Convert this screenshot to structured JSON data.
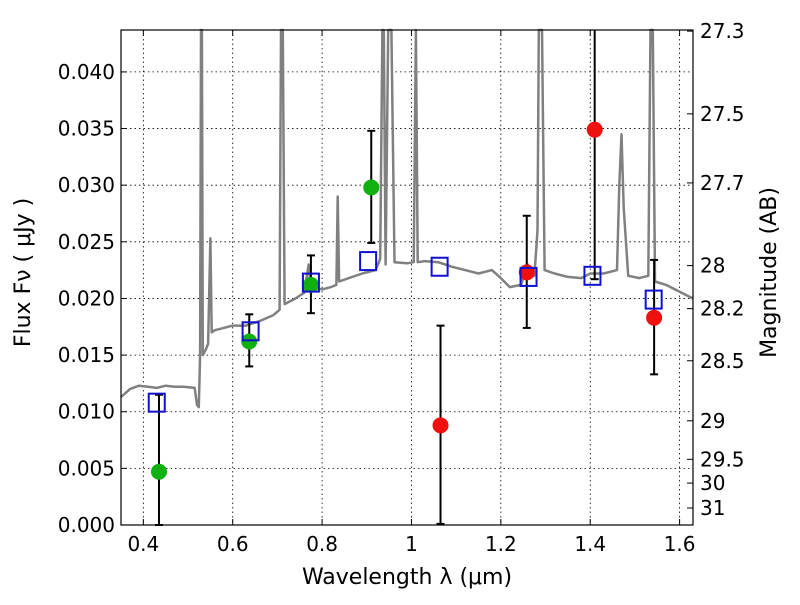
{
  "chart_data": {
    "type": "scatter",
    "xlabel": "Wavelength  λ (μm)",
    "ylabel": "Flux  Fν  ( μJy )",
    "ylabel_right": "Magnitude (AB)",
    "xlim": [
      0.35,
      1.63
    ],
    "ylim": [
      0.0,
      0.0437
    ],
    "grid": true,
    "x_ticks": [
      0.4,
      0.6,
      0.8,
      1.0,
      1.2,
      1.4,
      1.6
    ],
    "x_tick_labels": [
      "0.4",
      "0.6",
      "0.8",
      "1",
      "1.2",
      "1.4",
      "1.6"
    ],
    "y_ticks": [
      0.0,
      0.005,
      0.01,
      0.015,
      0.02,
      0.025,
      0.03,
      0.035,
      0.04
    ],
    "y_tick_labels": [
      "0.000",
      "0.005",
      "0.010",
      "0.015",
      "0.020",
      "0.025",
      "0.030",
      "0.035",
      "0.040"
    ],
    "right_ticks": [
      {
        "label": "27.3",
        "flux": 0.0436
      },
      {
        "label": "27.5",
        "flux": 0.0363
      },
      {
        "label": "27.7",
        "flux": 0.0302
      },
      {
        "label": "28",
        "flux": 0.0229
      },
      {
        "label": "28.2",
        "flux": 0.0191
      },
      {
        "label": "28.5",
        "flux": 0.0145
      },
      {
        "label": "29",
        "flux": 0.0092
      },
      {
        "label": "29.5",
        "flux": 0.0058
      },
      {
        "label": "30",
        "flux": 0.0037
      },
      {
        "label": "31",
        "flux": 0.0015
      }
    ],
    "series": [
      {
        "marker": "filled-circle",
        "color": "#10b010",
        "points": [
          {
            "x": 0.435,
            "y": 0.0047,
            "err_low": 0.0047,
            "err_high": 0.0068
          },
          {
            "x": 0.637,
            "y": 0.0162,
            "err_low": 0.0022,
            "err_high": 0.0024
          },
          {
            "x": 0.775,
            "y": 0.0212,
            "err_low": 0.0025,
            "err_high": 0.0026
          },
          {
            "x": 0.91,
            "y": 0.0298,
            "err_low": 0.0049,
            "err_high": 0.005
          }
        ]
      },
      {
        "marker": "filled-circle",
        "color": "#f01010",
        "points": [
          {
            "x": 1.065,
            "y": 0.0088,
            "err_low": 0.0087,
            "err_high": 0.0088
          },
          {
            "x": 1.258,
            "y": 0.0223,
            "err_low": 0.0049,
            "err_high": 0.005
          },
          {
            "x": 1.41,
            "y": 0.0349,
            "err_low": 0.0132,
            "err_high": 0.0088
          },
          {
            "x": 1.543,
            "y": 0.0183,
            "err_low": 0.005,
            "err_high": 0.0051
          }
        ]
      },
      {
        "marker": "open-square",
        "color": "#1010d0",
        "points": [
          {
            "x": 0.43,
            "y": 0.0108
          },
          {
            "x": 0.64,
            "y": 0.0171
          },
          {
            "x": 0.775,
            "y": 0.0214
          },
          {
            "x": 0.903,
            "y": 0.0233
          },
          {
            "x": 1.063,
            "y": 0.0228
          },
          {
            "x": 1.262,
            "y": 0.0219
          },
          {
            "x": 1.405,
            "y": 0.022
          },
          {
            "x": 1.542,
            "y": 0.0199
          }
        ]
      }
    ],
    "template_spectrum": {
      "color": "#808080",
      "points": [
        [
          0.35,
          0.0113
        ],
        [
          0.37,
          0.012
        ],
        [
          0.39,
          0.0123
        ],
        [
          0.41,
          0.0122
        ],
        [
          0.43,
          0.0121
        ],
        [
          0.45,
          0.0123
        ],
        [
          0.47,
          0.0122
        ],
        [
          0.49,
          0.0122
        ],
        [
          0.515,
          0.0121
        ],
        [
          0.52,
          0.0106
        ],
        [
          0.524,
          0.0104
        ],
        [
          0.527,
          0.015
        ],
        [
          0.529,
          0.0437
        ],
        [
          0.531,
          0.0437
        ],
        [
          0.533,
          0.015
        ],
        [
          0.54,
          0.0155
        ],
        [
          0.545,
          0.016
        ],
        [
          0.55,
          0.0253
        ],
        [
          0.553,
          0.017
        ],
        [
          0.56,
          0.0172
        ],
        [
          0.58,
          0.0174
        ],
        [
          0.6,
          0.0176
        ],
        [
          0.63,
          0.0176
        ],
        [
          0.66,
          0.018
        ],
        [
          0.69,
          0.0185
        ],
        [
          0.705,
          0.019
        ],
        [
          0.708,
          0.0437
        ],
        [
          0.712,
          0.0437
        ],
        [
          0.716,
          0.0195
        ],
        [
          0.74,
          0.02
        ],
        [
          0.76,
          0.0205
        ],
        [
          0.77,
          0.023
        ],
        [
          0.775,
          0.021
        ],
        [
          0.8,
          0.0208
        ],
        [
          0.82,
          0.021
        ],
        [
          0.832,
          0.0212
        ],
        [
          0.835,
          0.029
        ],
        [
          0.838,
          0.0215
        ],
        [
          0.86,
          0.0218
        ],
        [
          0.89,
          0.0222
        ],
        [
          0.92,
          0.0225
        ],
        [
          0.93,
          0.0235
        ],
        [
          0.935,
          0.0437
        ],
        [
          0.938,
          0.0437
        ],
        [
          0.942,
          0.023
        ],
        [
          0.948,
          0.0437
        ],
        [
          0.955,
          0.0437
        ],
        [
          0.962,
          0.0232
        ],
        [
          0.99,
          0.0231
        ],
        [
          1.005,
          0.0232
        ],
        [
          1.01,
          0.0437
        ],
        [
          1.014,
          0.0232
        ],
        [
          1.03,
          0.0233
        ],
        [
          1.06,
          0.0232
        ],
        [
          1.09,
          0.0228
        ],
        [
          1.12,
          0.0225
        ],
        [
          1.15,
          0.0222
        ],
        [
          1.18,
          0.0225
        ],
        [
          1.2,
          0.0218
        ],
        [
          1.22,
          0.021
        ],
        [
          1.245,
          0.0212
        ],
        [
          1.26,
          0.023
        ],
        [
          1.275,
          0.022
        ],
        [
          1.282,
          0.026
        ],
        [
          1.285,
          0.0437
        ],
        [
          1.292,
          0.0437
        ],
        [
          1.298,
          0.0225
        ],
        [
          1.32,
          0.0222
        ],
        [
          1.35,
          0.0219
        ],
        [
          1.38,
          0.0218
        ],
        [
          1.4,
          0.0222
        ],
        [
          1.43,
          0.0222
        ],
        [
          1.46,
          0.0225
        ],
        [
          1.465,
          0.03
        ],
        [
          1.47,
          0.0345
        ],
        [
          1.475,
          0.028
        ],
        [
          1.485,
          0.022
        ],
        [
          1.51,
          0.0218
        ],
        [
          1.53,
          0.022
        ],
        [
          1.535,
          0.0437
        ],
        [
          1.54,
          0.0437
        ],
        [
          1.545,
          0.0215
        ],
        [
          1.57,
          0.0212
        ],
        [
          1.6,
          0.0206
        ],
        [
          1.63,
          0.02
        ]
      ]
    }
  }
}
